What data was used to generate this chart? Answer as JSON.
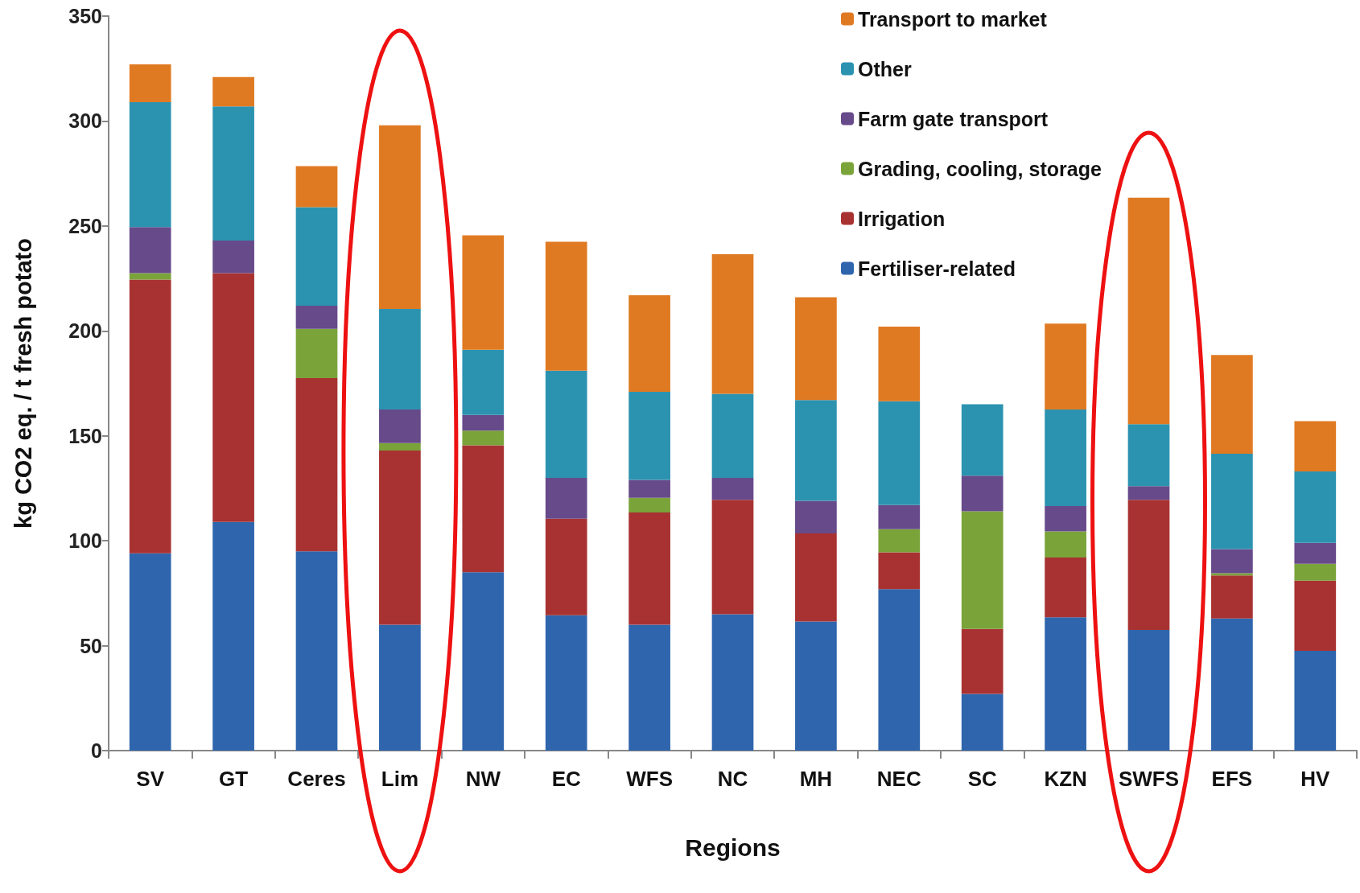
{
  "chart_data": {
    "type": "bar",
    "stacked": true,
    "xlabel": "Regions",
    "ylabel": "kg CO2 eq. / t fresh potato",
    "categories": [
      "SV",
      "GT",
      "Ceres",
      "Lim",
      "NW",
      "EC",
      "WFS",
      "NC",
      "MH",
      "NEC",
      "SC",
      "KZN",
      "SWFS",
      "EFS",
      "HV"
    ],
    "series": [
      {
        "name": "Fertiliser-related",
        "color": "#2f65ad",
        "values": [
          94,
          109,
          95,
          60,
          85,
          64.5,
          60,
          65,
          61.5,
          77,
          27,
          63.5,
          57.5,
          63,
          47.5
        ]
      },
      {
        "name": "Irrigation",
        "color": "#a83232",
        "values": [
          130.5,
          118.5,
          82.5,
          83,
          60.5,
          46,
          53.5,
          54.5,
          42,
          17.5,
          31,
          28.5,
          62,
          20.5,
          33.5
        ]
      },
      {
        "name": "Grading, cooling, storage",
        "color": "#7aa33a",
        "values": [
          3,
          0,
          23.5,
          3.5,
          7,
          0,
          7,
          0,
          0,
          11,
          56,
          12.5,
          0,
          1,
          8
        ]
      },
      {
        "name": "Farm gate transport",
        "color": "#674a8a",
        "values": [
          22,
          15.5,
          11,
          16,
          7.5,
          19.5,
          8.5,
          10.5,
          15.5,
          11.5,
          17,
          12,
          6.5,
          11.5,
          10
        ]
      },
      {
        "name": "Other",
        "color": "#2b93b0",
        "values": [
          59.5,
          64,
          47,
          48,
          31,
          51,
          42,
          40,
          48,
          49.5,
          34,
          46,
          29.5,
          45.5,
          34
        ]
      },
      {
        "name": "Transport to market",
        "color": "#e07a22",
        "values": [
          18,
          14,
          19.5,
          87.5,
          54.5,
          61.5,
          46,
          66.5,
          49,
          35.5,
          0,
          41,
          108,
          47,
          24
        ]
      }
    ],
    "ylim": [
      0,
      350
    ],
    "yticks": [
      0,
      50,
      100,
      150,
      200,
      250,
      300,
      350
    ],
    "grid": false,
    "legend": "top right"
  }
}
